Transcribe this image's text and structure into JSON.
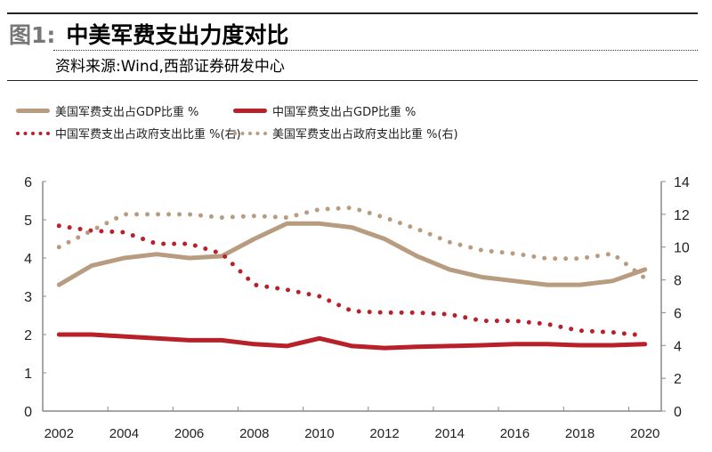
{
  "header": {
    "figure_no": "图1:",
    "title": "中美军费支出力度对比",
    "source": "资料来源:Wind,西部证券研发中心"
  },
  "colors": {
    "us": "#b89c80",
    "china": "#b8202a"
  },
  "chart_data": {
    "type": "line",
    "categories": [
      2002,
      2003,
      2004,
      2005,
      2006,
      2007,
      2008,
      2009,
      2010,
      2011,
      2012,
      2013,
      2014,
      2015,
      2016,
      2017,
      2018,
      2019,
      2020
    ],
    "x_tick_labels": [
      "2002",
      "2004",
      "2006",
      "2008",
      "2010",
      "2012",
      "2014",
      "2016",
      "2018",
      "2020"
    ],
    "y_left": {
      "range": [
        0,
        6
      ],
      "ticks": [
        "0",
        "1",
        "2",
        "3",
        "4",
        "5",
        "6"
      ]
    },
    "y_right": {
      "range": [
        0,
        14
      ],
      "ticks": [
        "0",
        "2",
        "4",
        "6",
        "8",
        "10",
        "12",
        "14"
      ]
    },
    "legend_placement": "top",
    "grid": false,
    "series": [
      {
        "name": "美国军费支出占GDP比重 %",
        "axis": "left",
        "style": "solid",
        "color": "#b89c80",
        "values": [
          3.3,
          3.8,
          4.0,
          4.1,
          4.0,
          4.05,
          4.5,
          4.9,
          4.9,
          4.8,
          4.5,
          4.05,
          3.7,
          3.5,
          3.4,
          3.3,
          3.3,
          3.4,
          3.7
        ]
      },
      {
        "name": "中国军费支出占GDP比重 %",
        "axis": "left",
        "style": "solid",
        "color": "#b8202a",
        "values": [
          2.0,
          2.0,
          1.95,
          1.9,
          1.85,
          1.85,
          1.75,
          1.7,
          1.9,
          1.7,
          1.65,
          1.68,
          1.7,
          1.72,
          1.75,
          1.75,
          1.72,
          1.72,
          1.75
        ]
      },
      {
        "name": "中国军费支出占政府支出比重 %(右)",
        "axis": "right",
        "style": "dotted",
        "color": "#b8202a",
        "values": [
          11.3,
          11.0,
          10.9,
          10.2,
          10.2,
          9.6,
          7.7,
          7.4,
          7.0,
          6.1,
          6.0,
          6.0,
          5.9,
          5.5,
          5.5,
          5.3,
          4.9,
          4.8,
          4.6
        ]
      },
      {
        "name": "美国军费支出占政府支出比重 %(右)",
        "axis": "right",
        "style": "dotted",
        "color": "#b89c80",
        "values": [
          10.0,
          11.0,
          12.0,
          12.0,
          12.0,
          11.8,
          11.9,
          11.8,
          12.3,
          12.4,
          11.8,
          11.1,
          10.3,
          9.8,
          9.6,
          9.3,
          9.3,
          9.6,
          8.1
        ]
      }
    ]
  }
}
